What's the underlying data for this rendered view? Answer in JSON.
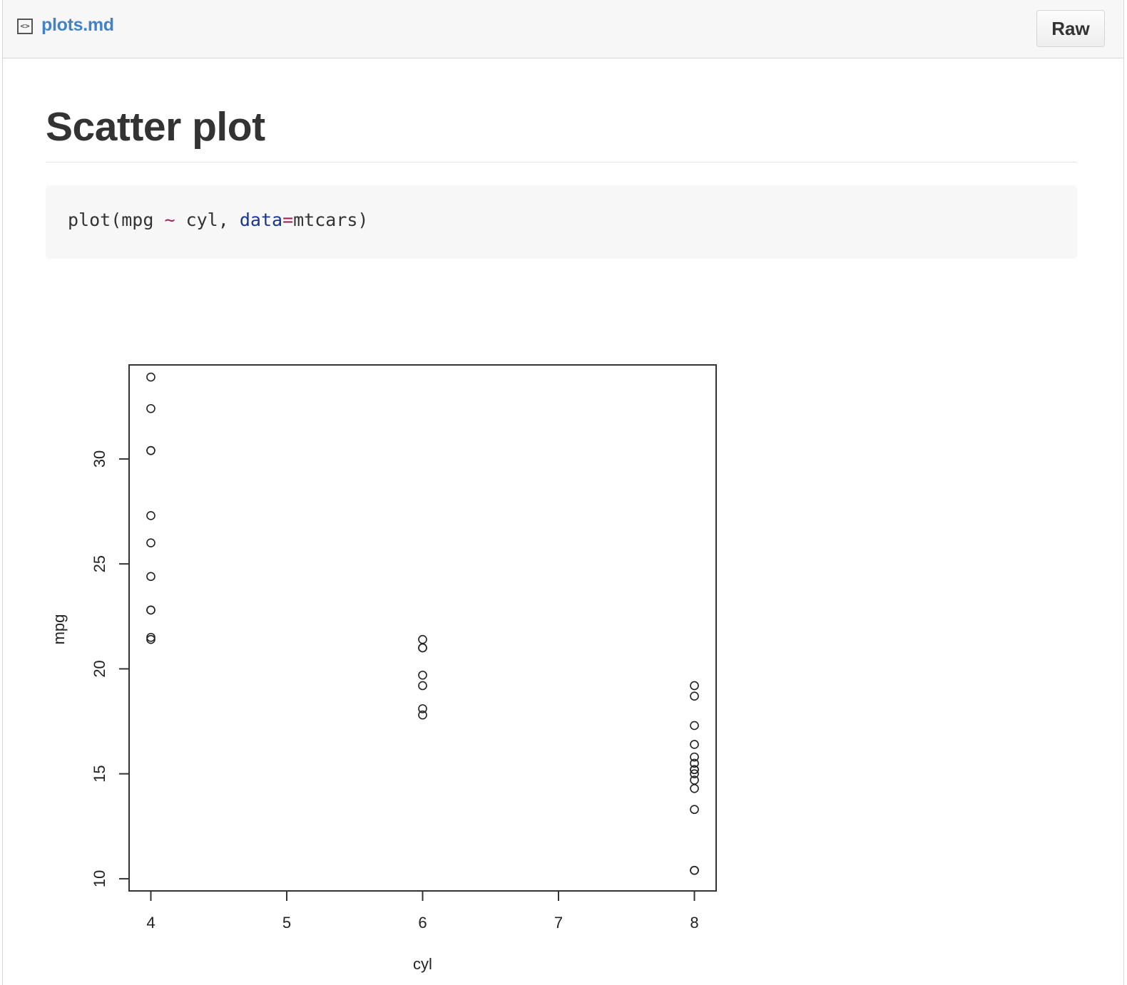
{
  "header": {
    "file_icon": "code-file-icon",
    "file_icon_glyph": "<>",
    "file_name": "plots.md",
    "raw_label": "Raw"
  },
  "main": {
    "title": "Scatter plot",
    "code": {
      "fn": "plot(mpg ",
      "tilde": "~",
      "mid": " cyl, ",
      "arg": "data",
      "eq": "=",
      "rest": "mtcars)"
    }
  },
  "colors": {
    "link": "#4183c4",
    "code_op": "#a71d5d",
    "code_arg": "#183691",
    "code_bg": "#f7f7f7"
  },
  "chart_data": {
    "type": "scatter",
    "title": "",
    "xlabel": "cyl",
    "ylabel": "mpg",
    "xlim": [
      3.84,
      8.16
    ],
    "ylim": [
      9.42,
      34.48
    ],
    "xticks": [
      4,
      5,
      6,
      7,
      8
    ],
    "yticks": [
      10,
      15,
      20,
      25,
      30
    ],
    "grid": false,
    "points": [
      {
        "x": 4,
        "y": 22.8
      },
      {
        "x": 4,
        "y": 24.4
      },
      {
        "x": 4,
        "y": 22.8
      },
      {
        "x": 4,
        "y": 32.4
      },
      {
        "x": 4,
        "y": 30.4
      },
      {
        "x": 4,
        "y": 33.9
      },
      {
        "x": 4,
        "y": 21.5
      },
      {
        "x": 4,
        "y": 27.3
      },
      {
        "x": 4,
        "y": 26.0
      },
      {
        "x": 4,
        "y": 30.4
      },
      {
        "x": 4,
        "y": 21.4
      },
      {
        "x": 6,
        "y": 21.0
      },
      {
        "x": 6,
        "y": 21.0
      },
      {
        "x": 6,
        "y": 21.4
      },
      {
        "x": 6,
        "y": 18.1
      },
      {
        "x": 6,
        "y": 19.2
      },
      {
        "x": 6,
        "y": 17.8
      },
      {
        "x": 6,
        "y": 19.7
      },
      {
        "x": 8,
        "y": 18.7
      },
      {
        "x": 8,
        "y": 14.3
      },
      {
        "x": 8,
        "y": 16.4
      },
      {
        "x": 8,
        "y": 17.3
      },
      {
        "x": 8,
        "y": 15.2
      },
      {
        "x": 8,
        "y": 10.4
      },
      {
        "x": 8,
        "y": 10.4
      },
      {
        "x": 8,
        "y": 14.7
      },
      {
        "x": 8,
        "y": 15.5
      },
      {
        "x": 8,
        "y": 15.2
      },
      {
        "x": 8,
        "y": 13.3
      },
      {
        "x": 8,
        "y": 19.2
      },
      {
        "x": 8,
        "y": 15.8
      },
      {
        "x": 8,
        "y": 15.0
      }
    ]
  }
}
